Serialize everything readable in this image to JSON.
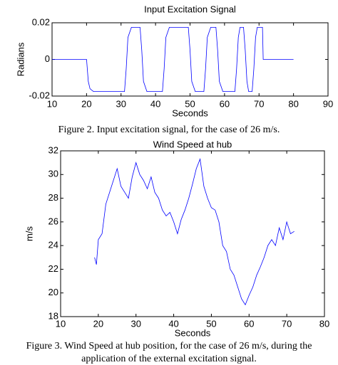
{
  "chart_data": [
    {
      "type": "line",
      "title": "Input Excitation Signal",
      "xlabel": "Seconds",
      "ylabel": "Radians",
      "caption": [
        "Figure 2. Input excitation signal, for the case of 26 m/s."
      ],
      "xlim": [
        10,
        90
      ],
      "xticks": [
        10,
        20,
        30,
        40,
        50,
        60,
        70,
        80,
        90
      ],
      "ylim": [
        -0.02,
        0.02
      ],
      "yticks": [
        -0.02,
        0,
        0.02
      ],
      "color": "#0000ff",
      "x": [
        10,
        20,
        20.5,
        21,
        22,
        31,
        31.5,
        32,
        33,
        35.5,
        36,
        36.5,
        37.5,
        42,
        42.5,
        43,
        44,
        49.5,
        50,
        50.5,
        51.5,
        54,
        54.5,
        55,
        56,
        57.5,
        58,
        58.5,
        59.5,
        63,
        63.5,
        64,
        64.5,
        65.5,
        66,
        66.5,
        67,
        68,
        68.5,
        69,
        69.5,
        71,
        71.2,
        80
      ],
      "values": [
        0,
        0,
        -0.012,
        -0.016,
        -0.0175,
        -0.0175,
        -0.005,
        0.012,
        0.0175,
        0.0175,
        0.005,
        -0.012,
        -0.0175,
        -0.0175,
        -0.005,
        0.012,
        0.0175,
        0.0175,
        0.005,
        -0.012,
        -0.0175,
        -0.0175,
        -0.005,
        0.012,
        0.0175,
        0.0175,
        0.005,
        -0.012,
        -0.0175,
        -0.0175,
        -0.005,
        0.012,
        0.0175,
        0.0175,
        0.005,
        -0.012,
        -0.0175,
        -0.0175,
        -0.005,
        0.012,
        0.0175,
        0.0175,
        0,
        0
      ]
    },
    {
      "type": "line",
      "title": "Wind Speed at hub",
      "xlabel": "Seconds",
      "ylabel": "m/s",
      "caption": [
        "Figure 3.  Wind Speed at hub position, for the case of 26 m/s, during the",
        "application of the external excitation signal."
      ],
      "xlim": [
        10,
        80
      ],
      "xticks": [
        10,
        20,
        30,
        40,
        50,
        60,
        70,
        80
      ],
      "ylim": [
        18,
        32
      ],
      "yticks": [
        18,
        20,
        22,
        24,
        26,
        28,
        30,
        32
      ],
      "color": "#0000ff",
      "x": [
        19,
        19.5,
        20,
        21,
        22,
        23,
        24,
        25,
        26,
        27,
        28,
        29,
        30,
        31,
        32,
        33,
        34,
        35,
        36,
        37,
        38,
        39,
        40,
        41,
        42,
        43,
        44,
        45,
        46,
        47,
        48,
        49,
        50,
        51,
        52,
        53,
        54,
        55,
        56,
        57,
        58,
        59,
        60,
        61,
        62,
        63,
        64,
        65,
        66,
        67,
        68,
        69,
        70,
        71,
        72
      ],
      "values": [
        23,
        22.4,
        24.5,
        25,
        27.5,
        28.5,
        29.5,
        30.5,
        29,
        28.5,
        28,
        29.8,
        31,
        30,
        29.5,
        28.8,
        29.8,
        28.5,
        28,
        27,
        26.5,
        26.8,
        26,
        25,
        26.2,
        27,
        28,
        29.2,
        30.5,
        31.3,
        29,
        28,
        27.2,
        27,
        26,
        24,
        23.5,
        22,
        21.5,
        20.5,
        19.5,
        19,
        19.8,
        20.5,
        21.5,
        22.2,
        23,
        24,
        24.5,
        24,
        25.5,
        24.5,
        26,
        25,
        25.2
      ]
    }
  ]
}
